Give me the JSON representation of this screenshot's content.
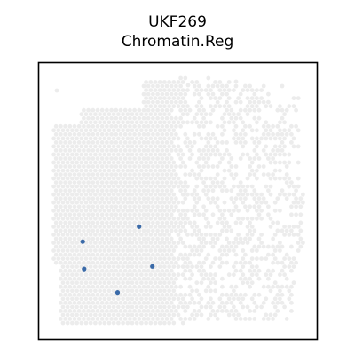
{
  "figure": {
    "title_line1": "UKF269",
    "title_line2": "Chromatin.Reg"
  },
  "chart_data": {
    "type": "scatter",
    "title": "UKF269\nChromatin.Reg",
    "xlabel": "",
    "ylabel": "",
    "axes_visible": false,
    "grid": false,
    "xlim": [
      0,
      100
    ],
    "ylim": [
      0,
      100
    ],
    "background_spots": {
      "description_color_only": true,
      "color": "#ececec"
    },
    "series": [
      {
        "color": "#3a6aa8",
        "x": [
          16.0,
          16.5,
          36.2,
          28.5,
          41.0
        ],
        "y": [
          35.2,
          25.3,
          40.6,
          16.8,
          26.2
        ]
      }
    ]
  }
}
